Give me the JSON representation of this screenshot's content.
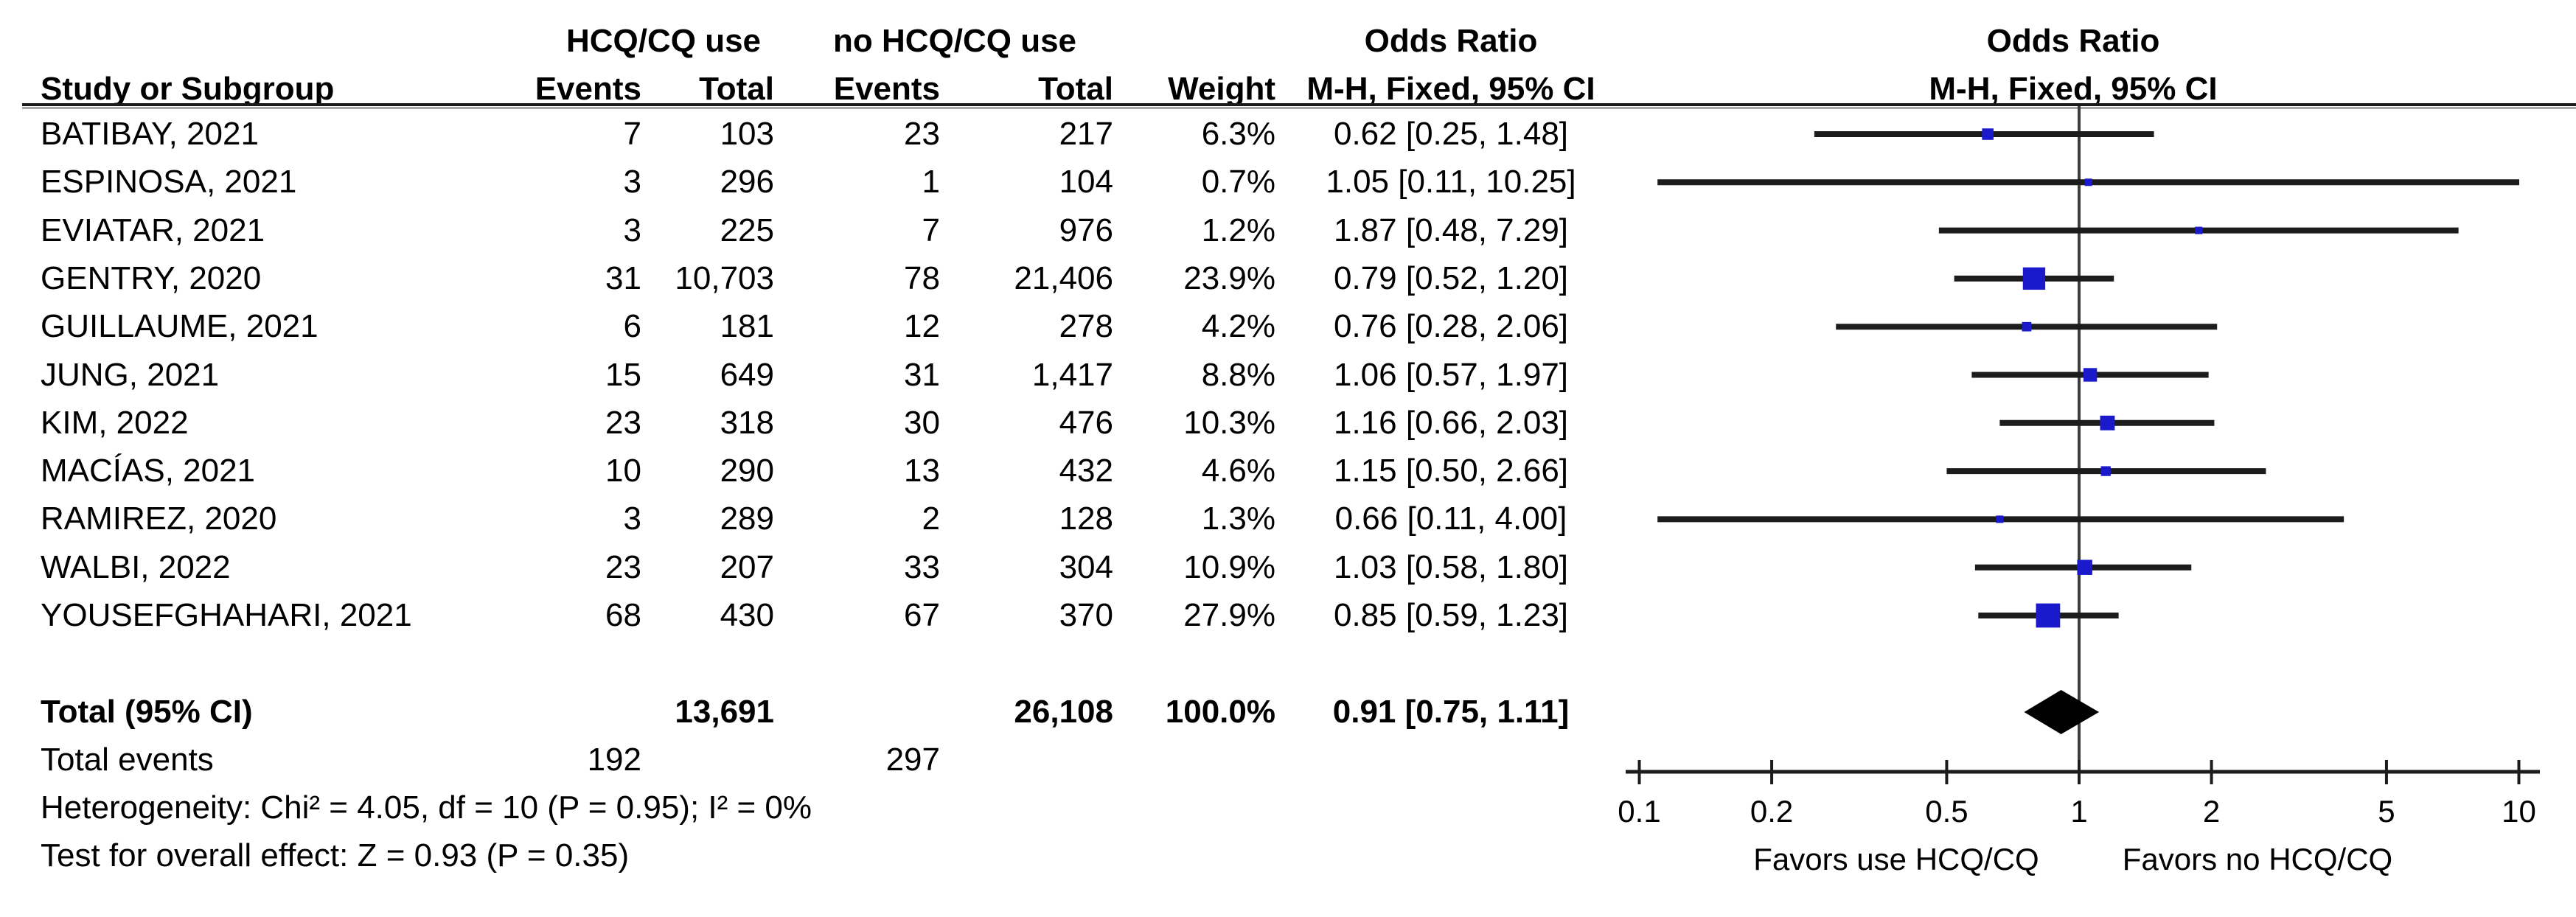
{
  "page": {
    "background": "#ffffff"
  },
  "chart_data": {
    "type": "scatter",
    "subtype": "forest-plot-meta-analysis",
    "effect_measure": "Odds Ratio",
    "statistical_method": "M-H, Fixed, 95% CI",
    "columns": {
      "study": "Study or Subgroup",
      "group1": "HCQ/CQ use",
      "group2": "no HCQ/CQ use",
      "events": "Events",
      "total": "Total",
      "weight": "Weight",
      "or_header": "Odds Ratio",
      "method_header": "M-H, Fixed, 95% CI"
    },
    "studies": [
      {
        "name": "BATIBAY, 2021",
        "events1": "7",
        "total1": "103",
        "events2": "23",
        "total2": "217",
        "weight": "6.3%",
        "weight_pct": 6.3,
        "ci_text": "0.62 [0.25, 1.48]",
        "or": 0.62,
        "lo": 0.25,
        "hi": 1.48
      },
      {
        "name": "ESPINOSA, 2021",
        "events1": "3",
        "total1": "296",
        "events2": "1",
        "total2": "104",
        "weight": "0.7%",
        "weight_pct": 0.7,
        "ci_text": "1.05 [0.11, 10.25]",
        "or": 1.05,
        "lo": 0.11,
        "hi": 10.25
      },
      {
        "name": "EVIATAR, 2021",
        "events1": "3",
        "total1": "225",
        "events2": "7",
        "total2": "976",
        "weight": "1.2%",
        "weight_pct": 1.2,
        "ci_text": "1.87 [0.48, 7.29]",
        "or": 1.87,
        "lo": 0.48,
        "hi": 7.29
      },
      {
        "name": "GENTRY, 2020",
        "events1": "31",
        "total1": "10,703",
        "events2": "78",
        "total2": "21,406",
        "weight": "23.9%",
        "weight_pct": 23.9,
        "ci_text": "0.79 [0.52, 1.20]",
        "or": 0.79,
        "lo": 0.52,
        "hi": 1.2
      },
      {
        "name": "GUILLAUME, 2021",
        "events1": "6",
        "total1": "181",
        "events2": "12",
        "total2": "278",
        "weight": "4.2%",
        "weight_pct": 4.2,
        "ci_text": "0.76 [0.28, 2.06]",
        "or": 0.76,
        "lo": 0.28,
        "hi": 2.06
      },
      {
        "name": "JUNG, 2021",
        "events1": "15",
        "total1": "649",
        "events2": "31",
        "total2": "1,417",
        "weight": "8.8%",
        "weight_pct": 8.8,
        "ci_text": "1.06 [0.57, 1.97]",
        "or": 1.06,
        "lo": 0.57,
        "hi": 1.97
      },
      {
        "name": "KIM, 2022",
        "events1": "23",
        "total1": "318",
        "events2": "30",
        "total2": "476",
        "weight": "10.3%",
        "weight_pct": 10.3,
        "ci_text": "1.16 [0.66, 2.03]",
        "or": 1.16,
        "lo": 0.66,
        "hi": 2.03
      },
      {
        "name": "MACÍAS, 2021",
        "events1": "10",
        "total1": "290",
        "events2": "13",
        "total2": "432",
        "weight": "4.6%",
        "weight_pct": 4.6,
        "ci_text": "1.15 [0.50, 2.66]",
        "or": 1.15,
        "lo": 0.5,
        "hi": 2.66
      },
      {
        "name": "RAMIREZ, 2020",
        "events1": "3",
        "total1": "289",
        "events2": "2",
        "total2": "128",
        "weight": "1.3%",
        "weight_pct": 1.3,
        "ci_text": "0.66 [0.11, 4.00]",
        "or": 0.66,
        "lo": 0.11,
        "hi": 4.0
      },
      {
        "name": "WALBI, 2022",
        "events1": "23",
        "total1": "207",
        "events2": "33",
        "total2": "304",
        "weight": "10.9%",
        "weight_pct": 10.9,
        "ci_text": "1.03 [0.58, 1.80]",
        "or": 1.03,
        "lo": 0.58,
        "hi": 1.8
      },
      {
        "name": "YOUSEFGHAHARI, 2021",
        "events1": "68",
        "total1": "430",
        "events2": "67",
        "total2": "370",
        "weight": "27.9%",
        "weight_pct": 27.9,
        "ci_text": "0.85 [0.59, 1.23]",
        "or": 0.85,
        "lo": 0.59,
        "hi": 1.23
      }
    ],
    "total": {
      "label": "Total (95% CI)",
      "total1": "13,691",
      "total2": "26,108",
      "weight": "100.0%",
      "ci_text": "0.91 [0.75, 1.11]",
      "or": 0.91,
      "lo": 0.75,
      "hi": 1.11
    },
    "total_events": {
      "label": "Total events",
      "events1": "192",
      "events2": "297"
    },
    "heterogeneity": "Heterogeneity: Chi² = 4.05, df = 10 (P = 0.95); I² = 0%",
    "overall_effect": "Test for overall effect: Z = 0.93 (P = 0.35)",
    "x_axis": {
      "scale": "log",
      "min": 0.1,
      "max": 10,
      "ticks": [
        0.1,
        0.2,
        0.5,
        1,
        2,
        5,
        10
      ]
    },
    "favors_left": "Favors use HCQ/CQ",
    "favors_right": "Favors no HCQ/CQ",
    "colors": {
      "marker": "#1a1acc",
      "diamond": "#000000",
      "ci_line": "#1c1c1c",
      "axis": "#1c1c1c",
      "center_line": "#3c3c3c",
      "text": "#000000"
    }
  }
}
